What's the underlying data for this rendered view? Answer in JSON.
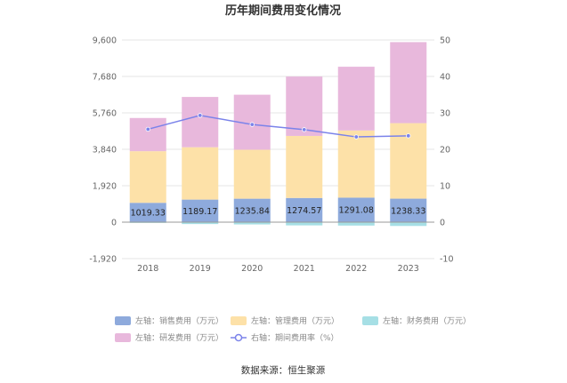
{
  "chart_data": {
    "type": "bar",
    "stacked": true,
    "title": "历年期间费用变化情况",
    "source": "数据来源：恒生聚源",
    "categories": [
      "2018",
      "2019",
      "2020",
      "2021",
      "2022",
      "2023"
    ],
    "y_left": {
      "min": -1920,
      "max": 9600,
      "ticks": [
        "9,600",
        "7,680",
        "5,760",
        "3,840",
        "1,920",
        "0",
        "-1,920"
      ],
      "tick_values": [
        9600,
        7680,
        5760,
        3840,
        1920,
        0,
        -1920
      ]
    },
    "y_right": {
      "min": -10,
      "max": 50,
      "ticks": [
        "50",
        "40",
        "30",
        "20",
        "10",
        "0",
        "-10"
      ],
      "tick_values": [
        50,
        40,
        30,
        20,
        10,
        0,
        -10
      ]
    },
    "series": [
      {
        "name": "左轴：销售费用（万元）",
        "color": "#8eaadc",
        "axis": "left",
        "values": [
          1019.33,
          1189.17,
          1235.84,
          1274.57,
          1291.08,
          1238.33
        ],
        "labels": [
          "1019.33",
          "1189.17",
          "1235.84",
          "1274.57",
          "1291.08",
          "1238.33"
        ]
      },
      {
        "name": "左轴：管理费用（万元）",
        "color": "#fde1a8",
        "axis": "left",
        "values": [
          2720,
          2760,
          2580,
          3270,
          3540,
          3980
        ]
      },
      {
        "name": "左轴：财务费用（万元）",
        "color": "#a6dfe5",
        "axis": "left",
        "values": [
          -40,
          -100,
          -120,
          -170,
          -180,
          -200
        ]
      },
      {
        "name": "左轴：研发费用（万元）",
        "color": "#e8b8dc",
        "axis": "left",
        "values": [
          1750,
          2650,
          2900,
          3130,
          3360,
          4270
        ]
      },
      {
        "name": "右轴：期间费用率（%）",
        "color": "#7b83ea",
        "axis": "right",
        "type": "line",
        "values": [
          25.5,
          29.3,
          26.8,
          25.4,
          23.4,
          23.7
        ]
      }
    ]
  }
}
